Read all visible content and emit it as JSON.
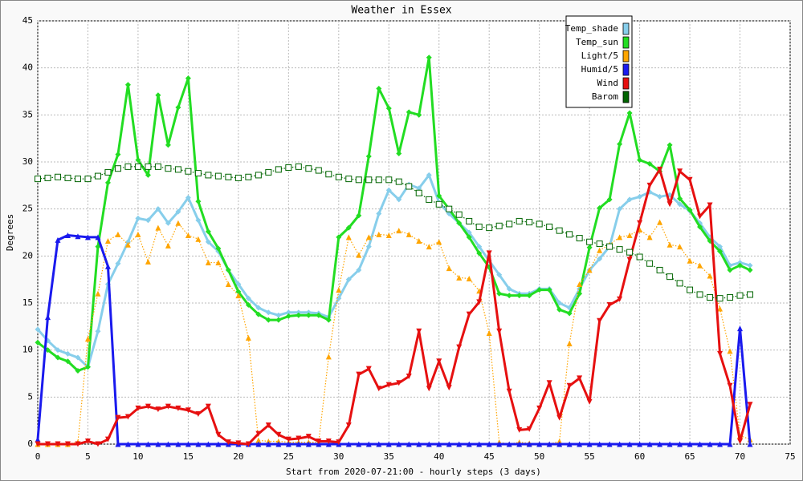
{
  "chart_data": {
    "type": "line",
    "title": "Weather in Essex",
    "x_label": "Start from 2020-07-21:00 - hourly steps (3 days)",
    "y_label": "Degrees",
    "x": [
      0,
      1,
      2,
      3,
      4,
      5,
      6,
      7,
      8,
      9,
      10,
      11,
      12,
      13,
      14,
      15,
      16,
      17,
      18,
      19,
      20,
      21,
      22,
      23,
      24,
      25,
      26,
      27,
      28,
      29,
      30,
      31,
      32,
      33,
      34,
      35,
      36,
      37,
      38,
      39,
      40,
      41,
      42,
      43,
      44,
      45,
      46,
      47,
      48,
      49,
      50,
      51,
      52,
      53,
      54,
      55,
      56,
      57,
      58,
      59,
      60,
      61,
      62,
      63,
      64,
      65,
      66,
      67,
      68,
      69,
      70,
      71
    ],
    "xlim": [
      0,
      75
    ],
    "xticks": [
      0,
      5,
      10,
      15,
      20,
      25,
      30,
      35,
      40,
      45,
      50,
      55,
      60,
      65,
      70,
      75
    ],
    "ylim": [
      0,
      45
    ],
    "yticks": [
      0,
      5,
      10,
      15,
      20,
      25,
      30,
      35,
      40,
      45
    ],
    "grid": true,
    "legend": "upper right",
    "series": [
      {
        "name": "Temp_shade",
        "color": "#87ceeb",
        "marker": "diamond",
        "line": "solid",
        "values": [
          12.2,
          11,
          10,
          9.6,
          9.2,
          8.2,
          12,
          17,
          19.2,
          21.5,
          24,
          23.8,
          25,
          23.5,
          24.7,
          26.2,
          23.8,
          21.5,
          20.5,
          18.5,
          17,
          15.5,
          14.5,
          14,
          13.7,
          14,
          14,
          14,
          13.9,
          13.5,
          15.5,
          17.5,
          18.5,
          21,
          24.5,
          27,
          26,
          27.6,
          27.2,
          28.6,
          25.7,
          24.5,
          23.5,
          22.5,
          21,
          19.5,
          18,
          16.5,
          16,
          16,
          16.5,
          16.5,
          15,
          14.5,
          16.5,
          18.5,
          19.7,
          21,
          25,
          26,
          26.3,
          26.8,
          26.3,
          26.5,
          25.5,
          24.8,
          23.5,
          22,
          21,
          19,
          19.3,
          19
        ]
      },
      {
        "name": "Temp_sun",
        "color": "#22dd22",
        "marker": "diamond",
        "line": "solid",
        "values": [
          10.8,
          10,
          9.2,
          8.8,
          7.8,
          8.2,
          21,
          27.8,
          30.8,
          38.2,
          30.2,
          28.6,
          37.1,
          31.8,
          35.8,
          38.9,
          25.8,
          22.6,
          20.8,
          18.5,
          16.2,
          14.8,
          13.8,
          13.2,
          13.2,
          13.6,
          13.7,
          13.7,
          13.7,
          13.2,
          22,
          23,
          24.3,
          30.6,
          37.8,
          35.7,
          30.9,
          35.3,
          35,
          41.1,
          26.4,
          25,
          23.5,
          22,
          20.3,
          18.8,
          16,
          15.8,
          15.8,
          15.8,
          16.4,
          16.4,
          14.3,
          13.9,
          16,
          20.9,
          25.1,
          26,
          31.9,
          35.2,
          30.2,
          29.8,
          29,
          31.8,
          26.1,
          24.9,
          23.1,
          21.6,
          20.5,
          18.5,
          19,
          18.5
        ]
      },
      {
        "name": "Light/5",
        "color": "#ffa500",
        "marker": "triangle-up",
        "line": "dotted",
        "values": [
          0,
          0,
          0,
          0,
          0.2,
          11.2,
          16,
          21.6,
          22.3,
          21.2,
          22.3,
          19.4,
          23,
          21.1,
          23.5,
          22.2,
          21.8,
          19.3,
          19.3,
          17,
          15.8,
          11.3,
          0.4,
          0.3,
          0.3,
          0.2,
          0.2,
          0.2,
          0.2,
          9.3,
          16.4,
          22,
          20.1,
          22,
          22.3,
          22.2,
          22.7,
          22.3,
          21.6,
          21,
          21.5,
          18.7,
          17.7,
          17.6,
          16.3,
          11.8,
          0.2,
          0,
          0.2,
          0.1,
          0,
          0,
          0.3,
          10.7,
          17,
          18.5,
          20.6,
          21.2,
          22,
          22.2,
          22.8,
          22,
          23.6,
          21.2,
          21,
          19.5,
          19,
          17.9,
          14.4,
          9.9,
          0.9,
          0.5
        ]
      },
      {
        "name": "Humid/5",
        "color": "#1a1aee",
        "marker": "triangle-up",
        "line": "solid",
        "values": [
          0.5,
          13.5,
          21.7,
          22.2,
          22.1,
          22,
          22,
          18.9,
          0,
          0,
          0,
          0,
          0,
          0,
          0,
          0,
          0,
          0,
          0,
          0,
          0,
          0,
          0,
          0,
          0,
          0,
          0,
          0,
          0,
          0,
          0,
          0,
          0,
          0,
          0,
          0,
          0,
          0,
          0,
          0,
          0,
          0,
          0,
          0,
          0,
          0,
          0,
          0,
          0,
          0,
          0,
          0,
          0,
          0,
          0,
          0,
          0,
          0,
          0,
          0,
          0,
          0,
          0,
          0,
          0,
          0,
          0,
          0,
          0,
          0,
          12.3,
          0
        ]
      },
      {
        "name": "Wind",
        "color": "#e61010",
        "marker": "triangle-down",
        "line": "solid",
        "values": [
          0,
          0,
          0,
          0,
          0,
          0.3,
          0,
          0.5,
          2.8,
          2.9,
          3.8,
          4,
          3.7,
          4,
          3.8,
          3.6,
          3.2,
          4,
          1,
          0.2,
          0.1,
          0,
          1.1,
          2,
          1,
          0.5,
          0.6,
          0.8,
          0.3,
          0.3,
          0.2,
          2,
          7.4,
          8,
          5.9,
          6.3,
          6.5,
          7.2,
          12,
          5.9,
          8.8,
          6,
          10.3,
          13.8,
          15.1,
          20.3,
          12,
          5.6,
          1.5,
          1.6,
          3.8,
          6.5,
          2.8,
          6.2,
          7,
          4.5,
          13.1,
          14.8,
          15.4,
          19.6,
          23.5,
          27.5,
          29.2,
          25.5,
          29,
          28.1,
          24.2,
          25.4,
          9.6,
          6.2,
          0.3,
          4.2
        ]
      },
      {
        "name": "Barom",
        "color": "#006400",
        "marker": "square",
        "line": "dotted",
        "values": [
          28.2,
          28.3,
          28.4,
          28.3,
          28.2,
          28.2,
          28.5,
          28.9,
          29.3,
          29.5,
          29.5,
          29.5,
          29.5,
          29.3,
          29.2,
          29,
          28.8,
          28.6,
          28.5,
          28.4,
          28.3,
          28.4,
          28.6,
          28.9,
          29.2,
          29.4,
          29.5,
          29.3,
          29.1,
          28.7,
          28.4,
          28.2,
          28.1,
          28.1,
          28.1,
          28.1,
          27.9,
          27.4,
          26.7,
          26,
          25.5,
          25,
          24.4,
          23.7,
          23.1,
          23,
          23.2,
          23.4,
          23.7,
          23.6,
          23.4,
          23.1,
          22.7,
          22.3,
          21.9,
          21.5,
          21.3,
          21,
          20.7,
          20.4,
          19.9,
          19.2,
          18.5,
          17.8,
          17.1,
          16.4,
          15.9,
          15.6,
          15.5,
          15.6,
          15.8,
          15.9
        ]
      }
    ]
  }
}
